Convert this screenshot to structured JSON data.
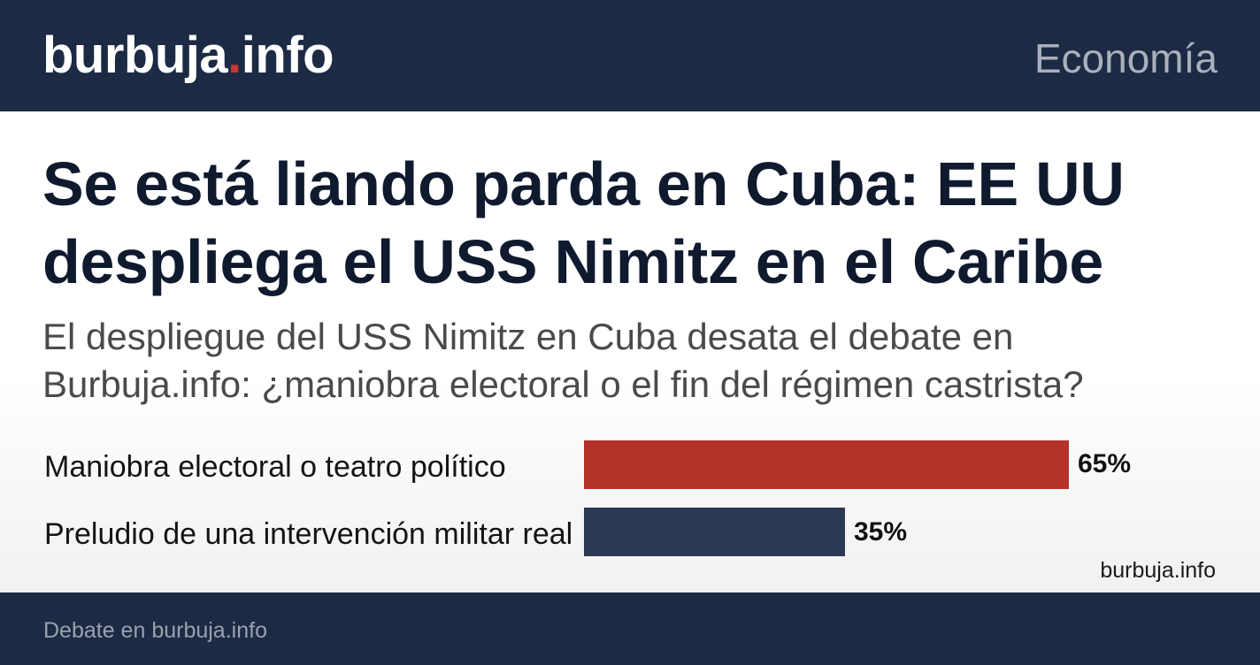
{
  "header": {
    "brand_name": "burbuja",
    "brand_dot": ".",
    "brand_tld": "info",
    "section": "Economía",
    "background_color": "#1c2a44",
    "accent_color": "#c8362c"
  },
  "article": {
    "title": "Se está liando parda en Cuba: EE UU despliega el USS Nimitz en el Caribe",
    "subtitle": "El despliegue del USS Nimitz en Cuba desata el debate en Burbuja.info: ¿maniobra electoral o el fin del régimen castrista?"
  },
  "chart_data": {
    "type": "bar",
    "orientation": "horizontal",
    "categories": [
      "Maniobra electoral o teatro político",
      "Preludio de una intervención militar real"
    ],
    "values": [
      65,
      35
    ],
    "value_labels": [
      "65%",
      "35%"
    ],
    "colors": [
      "#b5322a",
      "#2b3a52"
    ],
    "xlim": [
      0,
      65
    ],
    "grid": false,
    "source": "burbuja.info"
  },
  "footer": {
    "text": "Debate en burbuja.info"
  }
}
